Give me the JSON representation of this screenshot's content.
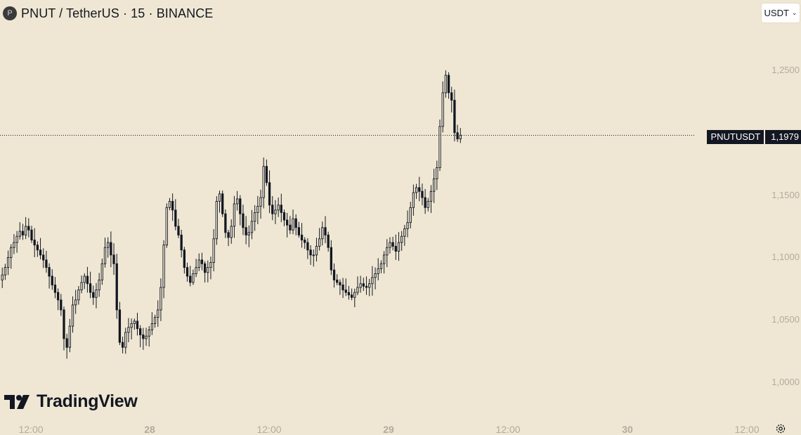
{
  "header": {
    "symbol_icon_letter": "P",
    "title": "PNUT / TetherUS · 15 · BINANCE"
  },
  "currency_button": {
    "label": "USDT",
    "icon": "chevron-down-icon"
  },
  "watermark": {
    "logo_text": "TradingView",
    "icon": "tradingview-logo-icon"
  },
  "settings": {
    "icon": "gear-icon"
  },
  "last_price": {
    "symbol": "PNUTUSDT",
    "value": "1,1979",
    "numeric": 1.1979
  },
  "colors": {
    "background": "#efe7d3",
    "candle": "#131722",
    "axis_text": "#b2ac9c",
    "label_bg": "#131722"
  },
  "chart_data": {
    "type": "candlestick",
    "title": "PNUT / TetherUS · 15 · BINANCE",
    "interval": "15",
    "y_axis": {
      "ticks": [
        1.0,
        1.05,
        1.1,
        1.15,
        1.25
      ],
      "tick_labels": [
        "1,0000",
        "1,0500",
        "1,1000",
        "1,1500",
        "1,2500"
      ],
      "ylim": [
        0.985,
        1.28
      ]
    },
    "x_axis": {
      "tick_labels": [
        "12:00",
        "28",
        "12:00",
        "29",
        "12:00",
        "30",
        "12:00"
      ],
      "bold": [
        false,
        true,
        false,
        true,
        false,
        true,
        false
      ]
    },
    "series_close": [
      1.086,
      1.092,
      1.1,
      1.108,
      1.112,
      1.117,
      1.121,
      1.118,
      1.125,
      1.122,
      1.114,
      1.11,
      1.106,
      1.102,
      1.098,
      1.092,
      1.085,
      1.078,
      1.072,
      1.066,
      1.058,
      1.035,
      1.028,
      1.045,
      1.062,
      1.066,
      1.074,
      1.08,
      1.085,
      1.079,
      1.072,
      1.068,
      1.074,
      1.082,
      1.095,
      1.108,
      1.112,
      1.102,
      1.095,
      1.058,
      1.032,
      1.028,
      1.04,
      1.044,
      1.047,
      1.049,
      1.043,
      1.038,
      1.035,
      1.037,
      1.042,
      1.047,
      1.052,
      1.058,
      1.076,
      1.11,
      1.14,
      1.145,
      1.138,
      1.125,
      1.118,
      1.106,
      1.092,
      1.085,
      1.08,
      1.087,
      1.092,
      1.098,
      1.095,
      1.088,
      1.092,
      1.096,
      1.115,
      1.145,
      1.151,
      1.135,
      1.12,
      1.116,
      1.125,
      1.143,
      1.147,
      1.135,
      1.124,
      1.118,
      1.12,
      1.129,
      1.136,
      1.141,
      1.148,
      1.173,
      1.16,
      1.142,
      1.135,
      1.138,
      1.142,
      1.136,
      1.13,
      1.126,
      1.122,
      1.131,
      1.124,
      1.118,
      1.114,
      1.112,
      1.106,
      1.102,
      1.102,
      1.109,
      1.115,
      1.124,
      1.118,
      1.108,
      1.09,
      1.082,
      1.08,
      1.078,
      1.074,
      1.072,
      1.07,
      1.068,
      1.072,
      1.076,
      1.079,
      1.077,
      1.076,
      1.079,
      1.084,
      1.087,
      1.091,
      1.095,
      1.102,
      1.108,
      1.112,
      1.109,
      1.105,
      1.112,
      1.117,
      1.123,
      1.128,
      1.14,
      1.152,
      1.156,
      1.153,
      1.148,
      1.14,
      1.145,
      1.153,
      1.163,
      1.172,
      1.205,
      1.232,
      1.246,
      1.232,
      1.226,
      1.2,
      1.195,
      1.198
    ]
  }
}
